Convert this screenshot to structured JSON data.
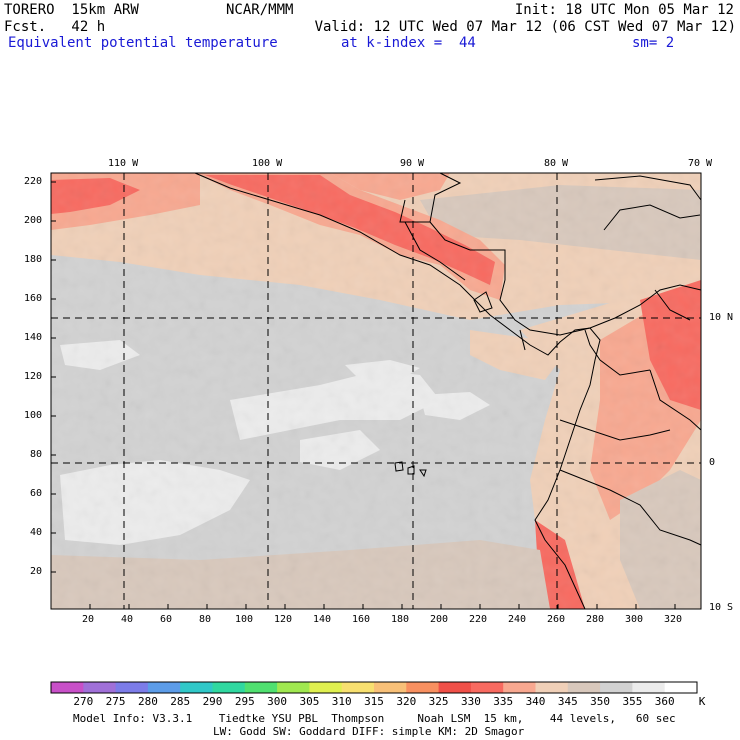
{
  "header": {
    "model": "TORERO  15km ARW",
    "agency": "NCAR/MMM",
    "init": "Init: 18 UTC Mon 05 Mar 12",
    "fcst": "Fcst.   42 h",
    "valid": "Valid: 12 UTC Wed 07 Mar 12 (06 CST Wed 07 Mar 12)",
    "field": "Equivalent potential temperature",
    "level": "at k-index =  44",
    "smooth": "sm= 2"
  },
  "axes": {
    "x_ticks": [
      "20",
      "40",
      "60",
      "80",
      "100",
      "120",
      "140",
      "160",
      "180",
      "200",
      "220",
      "240",
      "260",
      "280",
      "300",
      "320"
    ],
    "y_ticks": [
      "20",
      "40",
      "60",
      "80",
      "100",
      "120",
      "140",
      "160",
      "180",
      "200",
      "220"
    ],
    "lon_labels": [
      "110 W",
      "100 W",
      "90 W",
      "80 W",
      "70 W"
    ],
    "lat_labels": [
      "10 N",
      "0",
      "10 S"
    ]
  },
  "colorbar": {
    "unit": "K",
    "levels": [
      "270",
      "275",
      "280",
      "285",
      "290",
      "295",
      "300",
      "305",
      "310",
      "315",
      "320",
      "325",
      "330",
      "335",
      "340",
      "345",
      "350",
      "355",
      "360"
    ],
    "colors": [
      "#c850c8",
      "#a070d8",
      "#7c7ce8",
      "#5c9ce8",
      "#30c8c8",
      "#30d8a0",
      "#50e070",
      "#a0e850",
      "#e0f050",
      "#f8e070",
      "#f8c078",
      "#f89060",
      "#f05048",
      "#f86a60",
      "#f8a890",
      "#f0d0b8",
      "#d8c8bc",
      "#d2d2d2",
      "#ececec",
      "#ffffff"
    ]
  },
  "model_info": {
    "line1": "Model Info: V3.3.1    Tiedtke YSU PBL  Thompson     Noah LSM  15 km,    44 levels,   60 sec",
    "line2": "LW: Godd SW: Goddard DIFF: simple KM: 2D Smagor"
  }
}
